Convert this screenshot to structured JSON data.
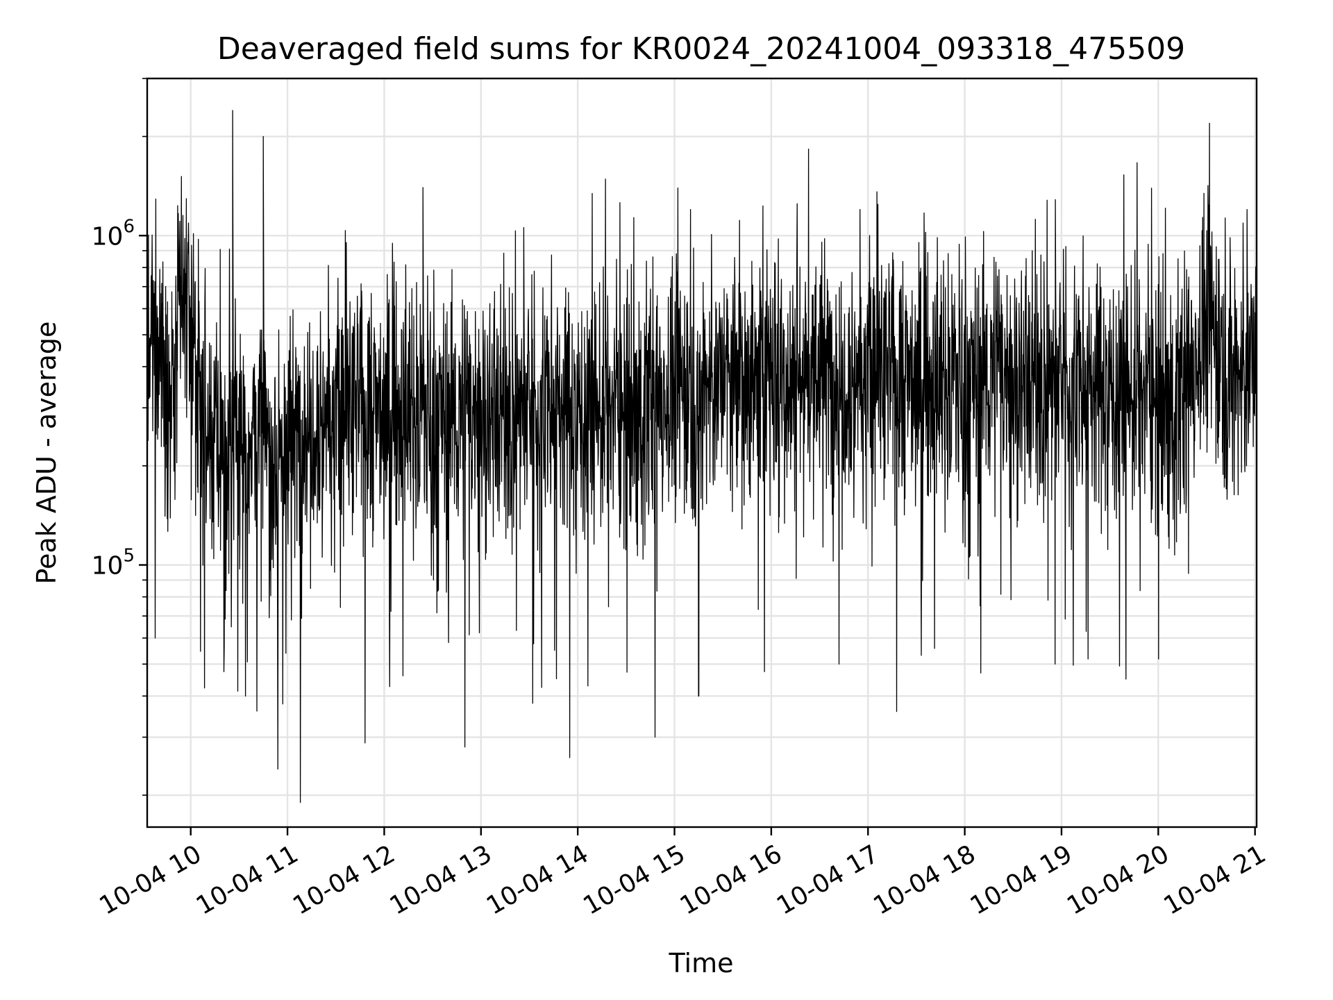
{
  "chart_data": {
    "type": "line",
    "title": "Deaveraged field sums for KR0024_20241004_093318_475509",
    "xlabel": "Time",
    "ylabel": "Peak ADU - average",
    "yscale": "log",
    "x_range": [
      "10-04 09:33",
      "10-04 21:01"
    ],
    "ylim": [
      16000,
      3000000
    ],
    "x_ticks": [
      "10-04 10",
      "10-04 11",
      "10-04 12",
      "10-04 13",
      "10-04 14",
      "10-04 15",
      "10-04 16",
      "10-04 17",
      "10-04 18",
      "10-04 19",
      "10-04 20",
      "10-04 21"
    ],
    "y_ticks": [
      {
        "base": "10",
        "exp": "5",
        "value": 100000
      },
      {
        "base": "10",
        "exp": "6",
        "value": 1000000
      }
    ],
    "grid": true,
    "legend": "none",
    "line_color": "#000000",
    "series": [
      {
        "points": [
          [
            "09:34",
            400000
          ],
          [
            "09:40",
            550000
          ],
          [
            "09:48",
            280000
          ],
          [
            "09:53",
            600000
          ],
          [
            "10:00",
            560000
          ],
          [
            "10:10",
            220000
          ],
          [
            "10:20",
            240000
          ],
          [
            "10:26",
            2400000
          ],
          [
            "10:30",
            230000
          ],
          [
            "10:40",
            260000
          ],
          [
            "10:45",
            2000000
          ],
          [
            "10:55",
            210000
          ],
          [
            "11:05",
            240000
          ],
          [
            "11:15",
            300000
          ],
          [
            "11:30",
            280000
          ],
          [
            "11:45",
            300000
          ],
          [
            "12:00",
            290000
          ],
          [
            "12:15",
            300000
          ],
          [
            "12:24",
            1400000
          ],
          [
            "12:40",
            290000
          ],
          [
            "12:50",
            280000
          ],
          [
            "13:00",
            300000
          ],
          [
            "13:15",
            290000
          ],
          [
            "13:30",
            300000
          ],
          [
            "13:45",
            310000
          ],
          [
            "13:55",
            290000
          ],
          [
            "14:10",
            300000
          ],
          [
            "14:30",
            300000
          ],
          [
            "14:45",
            320000
          ],
          [
            "15:00",
            340000
          ],
          [
            "15:15",
            360000
          ],
          [
            "15:30",
            360000
          ],
          [
            "15:45",
            370000
          ],
          [
            "16:00",
            380000
          ],
          [
            "16:20",
            380000
          ],
          [
            "16:40",
            390000
          ],
          [
            "17:00",
            380000
          ],
          [
            "17:20",
            370000
          ],
          [
            "17:40",
            360000
          ],
          [
            "18:00",
            370000
          ],
          [
            "18:20",
            380000
          ],
          [
            "18:40",
            370000
          ],
          [
            "19:00",
            360000
          ],
          [
            "19:20",
            350000
          ],
          [
            "19:40",
            340000
          ],
          [
            "20:00",
            330000
          ],
          [
            "20:15",
            320000
          ],
          [
            "20:30",
            560000
          ],
          [
            "20:40",
            450000
          ],
          [
            "20:50",
            380000
          ],
          [
            "21:00",
            420000
          ]
        ],
        "extremes": [
          [
            "09:38",
            60000
          ],
          [
            "10:34",
            40000
          ],
          [
            "10:41",
            36000
          ],
          [
            "10:54",
            24000
          ],
          [
            "11:08",
            19000
          ],
          [
            "12:50",
            28000
          ],
          [
            "13:32",
            38000
          ],
          [
            "13:55",
            26000
          ],
          [
            "14:48",
            30000
          ],
          [
            "15:10",
            1200000
          ],
          [
            "15:15",
            40000
          ],
          [
            "16:16",
            1250000
          ],
          [
            "16:42",
            50000
          ],
          [
            "16:55",
            1200000
          ],
          [
            "18:10",
            47000
          ],
          [
            "18:56",
            50000
          ],
          [
            "19:40",
            45000
          ],
          [
            "20:55",
            1200000
          ]
        ]
      }
    ]
  }
}
